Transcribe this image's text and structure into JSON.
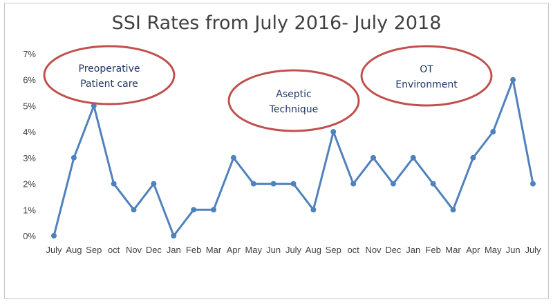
{
  "chart_data": {
    "type": "line",
    "title": "SSI Rates from July 2016- July 2018",
    "xlabel": "",
    "ylabel": "",
    "categories": [
      "July",
      "Aug",
      "Sep",
      "oct",
      "Nov",
      "Dec",
      "Jan",
      "Feb",
      "Mar",
      "Apr",
      "May",
      "Jun",
      "July",
      "Aug",
      "Sep",
      "oct",
      "Nov",
      "Dec",
      "Jan",
      "Feb",
      "Mar",
      "Apr",
      "May",
      "Jun",
      "July"
    ],
    "series": [
      {
        "values": [
          0,
          3,
          5,
          2,
          1,
          2,
          0,
          1,
          1,
          3,
          2,
          2,
          2,
          1,
          4,
          2,
          3,
          2,
          3,
          2,
          1,
          3,
          4,
          6,
          2
        ]
      }
    ],
    "ylim": [
      0,
      7
    ],
    "yticks": [
      "0%",
      "1%",
      "2%",
      "3%",
      "4%",
      "5%",
      "6%",
      "7%"
    ],
    "grid": false,
    "line_color": "#4f81bd",
    "annotations": [
      {
        "lines": [
          "Preoperative",
          "Patient care"
        ],
        "category_index": 1
      },
      {
        "lines": [
          "Aseptic",
          "Technique"
        ],
        "category_index": 12
      },
      {
        "lines": [
          "OT",
          "Environment"
        ],
        "category_index": 19
      }
    ],
    "annotation_border_color": "#c0504d"
  }
}
